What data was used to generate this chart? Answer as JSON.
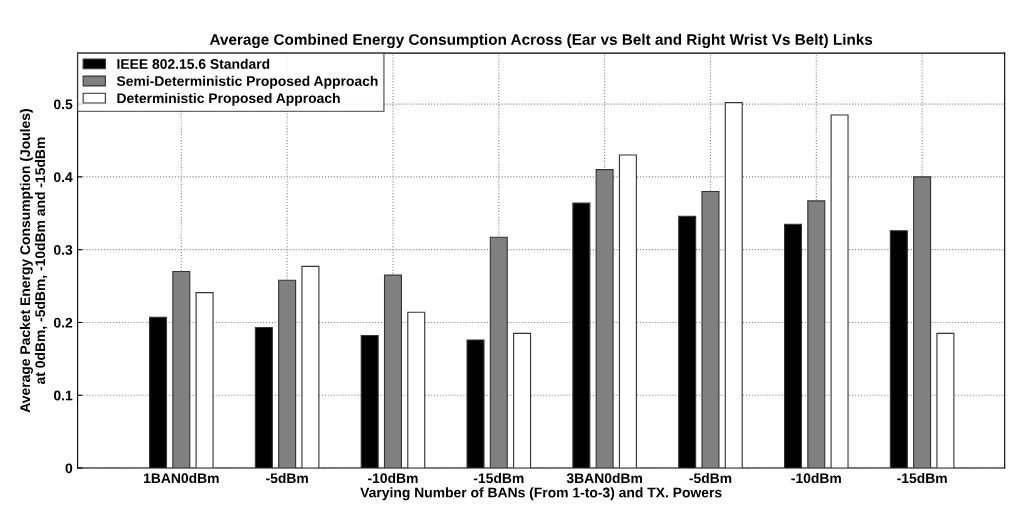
{
  "chart_data": {
    "type": "bar",
    "title": "Average Combined Energy Consumption Across (Ear vs Belt and Right Wrist Vs Belt) Links",
    "xlabel": "Varying Number of BANs (From 1-to-3) and TX. Powers",
    "ylabel": "Average Packet Energy Consumption (Joules)\nat 0dBm, -5dBm, -10dBm and -15dBm",
    "categories": [
      "1BAN0dBm",
      "-5dBm",
      "-10dBm",
      "-15dBm",
      "3BAN0dBm",
      "-5dBm",
      "-10dBm",
      "-15dBm"
    ],
    "series": [
      {
        "name": "IEEE 802.15.6 Standard",
        "color": "#000000",
        "values": [
          0.207,
          0.193,
          0.182,
          0.176,
          0.364,
          0.346,
          0.335,
          0.326
        ]
      },
      {
        "name": "Semi-Deterministic Proposed Approach",
        "color": "#808080",
        "values": [
          0.27,
          0.258,
          0.265,
          0.317,
          0.41,
          0.38,
          0.367,
          0.4
        ]
      },
      {
        "name": "Deterministic Proposed Approach",
        "color": "#ffffff",
        "values": [
          0.241,
          0.277,
          0.214,
          0.185,
          0.43,
          0.502,
          0.485,
          0.185
        ]
      }
    ],
    "ylim": [
      0,
      0.57
    ],
    "yticks": [
      0,
      0.1,
      0.2,
      0.3,
      0.4,
      0.5
    ],
    "grid": true,
    "legend": "top left"
  }
}
